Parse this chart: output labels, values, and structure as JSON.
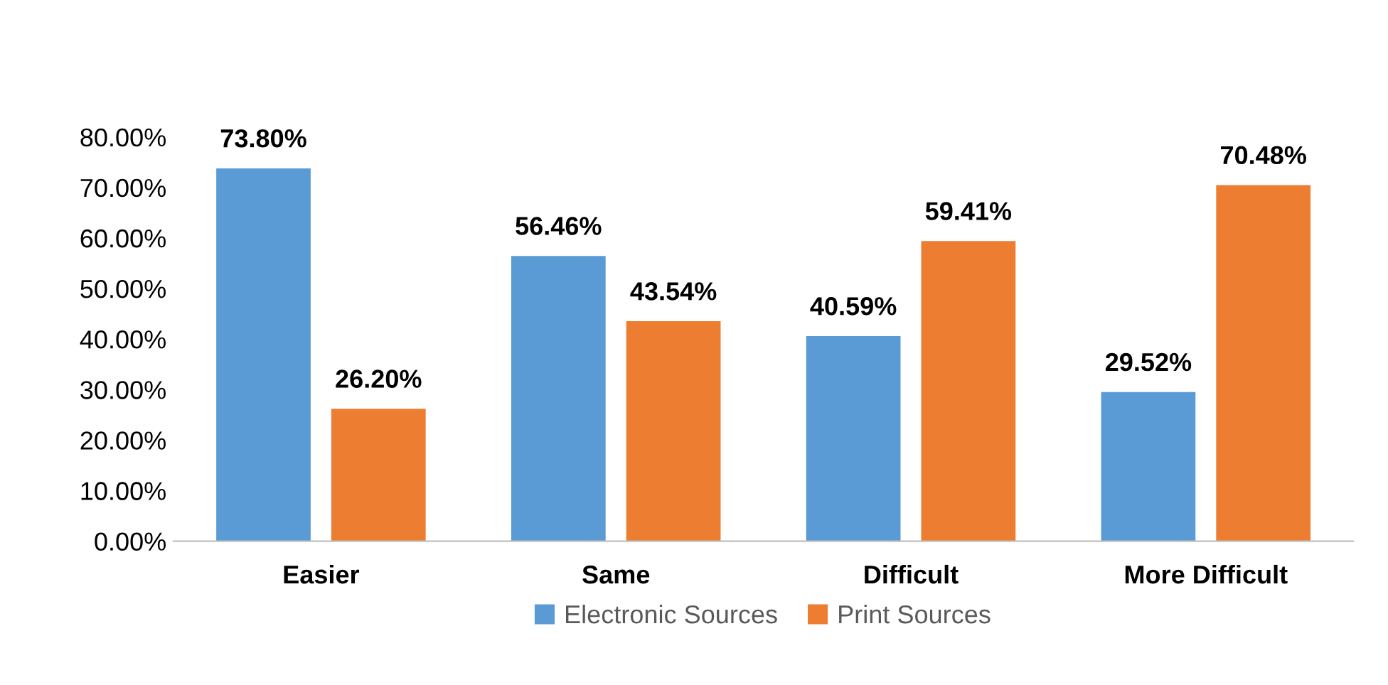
{
  "chart_data": {
    "type": "bar",
    "categories": [
      "Easier",
      "Same",
      "Difficult",
      "More Difficult"
    ],
    "series": [
      {
        "name": "Electronic Sources",
        "color": "#5b9bd5",
        "values": [
          73.8,
          56.46,
          40.59,
          29.52
        ],
        "value_labels": [
          "73.80%",
          "56.46%",
          "40.59%",
          "29.52%"
        ]
      },
      {
        "name": "Print Sources",
        "color": "#ed7d31",
        "values": [
          26.2,
          43.54,
          59.41,
          70.48
        ],
        "value_labels": [
          "26.20%",
          "43.54%",
          "59.41%",
          "70.48%"
        ]
      }
    ],
    "ylim": [
      0,
      80
    ],
    "yticks": [
      {
        "value": 0,
        "label": "0.00%"
      },
      {
        "value": 10,
        "label": "10.00%"
      },
      {
        "value": 20,
        "label": "20.00%"
      },
      {
        "value": 30,
        "label": "30.00%"
      },
      {
        "value": 40,
        "label": "40.00%"
      },
      {
        "value": 50,
        "label": "50.00%"
      },
      {
        "value": 60,
        "label": "60.00%"
      },
      {
        "value": 70,
        "label": "70.00%"
      },
      {
        "value": 80,
        "label": "80.00%"
      }
    ],
    "grid": false,
    "legend": "bottom"
  }
}
